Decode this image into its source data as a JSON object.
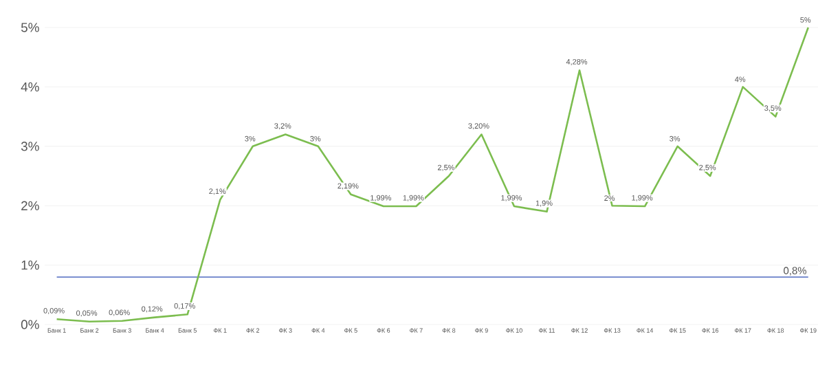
{
  "chart_data": {
    "type": "line",
    "categories": [
      "Банк 1",
      "Банк 2",
      "Банк 3",
      "Банк 4",
      "Банк 5",
      "ФК 1",
      "ФК 2",
      "ФК 3",
      "ФК 4",
      "ФК 5",
      "ФК 6",
      "ФК 7",
      "ФК 8",
      "ФК 9",
      "ФК 10",
      "ФК 11",
      "ФК 12",
      "ФК 13",
      "ФК 14",
      "ФК 15",
      "ФК 16",
      "ФК 17",
      "ФК 18",
      "ФК 19"
    ],
    "series": [
      {
        "color": "#7cbd4f",
        "values": [
          0.09,
          0.05,
          0.06,
          0.12,
          0.17,
          2.1,
          3,
          3.2,
          3,
          2.19,
          1.99,
          1.99,
          2.5,
          3.2,
          1.99,
          1.9,
          4.28,
          2,
          1.99,
          3,
          2.5,
          4,
          3.5,
          5
        ],
        "value_labels": [
          "0,09%",
          "0,05%",
          "0,06%",
          "0,12%",
          "0,17%",
          "2,1%",
          "3%",
          "3,2%",
          "3%",
          "2,19%",
          "1,99%",
          "1,99%",
          "2,5%",
          "3,20%",
          "1,99%",
          "1,9%",
          "4,28%",
          "2%",
          "1,99%",
          "3%",
          "2,5%",
          "4%",
          "3,5%",
          "5%"
        ]
      }
    ],
    "ylim": [
      0,
      5
    ],
    "yticks": [
      {
        "value": 0,
        "label": "0%"
      },
      {
        "value": 1,
        "label": "1%"
      },
      {
        "value": 2,
        "label": "2%"
      },
      {
        "value": 3,
        "label": "3%"
      },
      {
        "value": 4,
        "label": "4%"
      },
      {
        "value": 5,
        "label": "5%"
      }
    ],
    "grid": "y",
    "ref_lines": [
      {
        "axis": "y",
        "value": 0.8,
        "label": "0,8%",
        "color": "#7b8fd0"
      }
    ]
  }
}
